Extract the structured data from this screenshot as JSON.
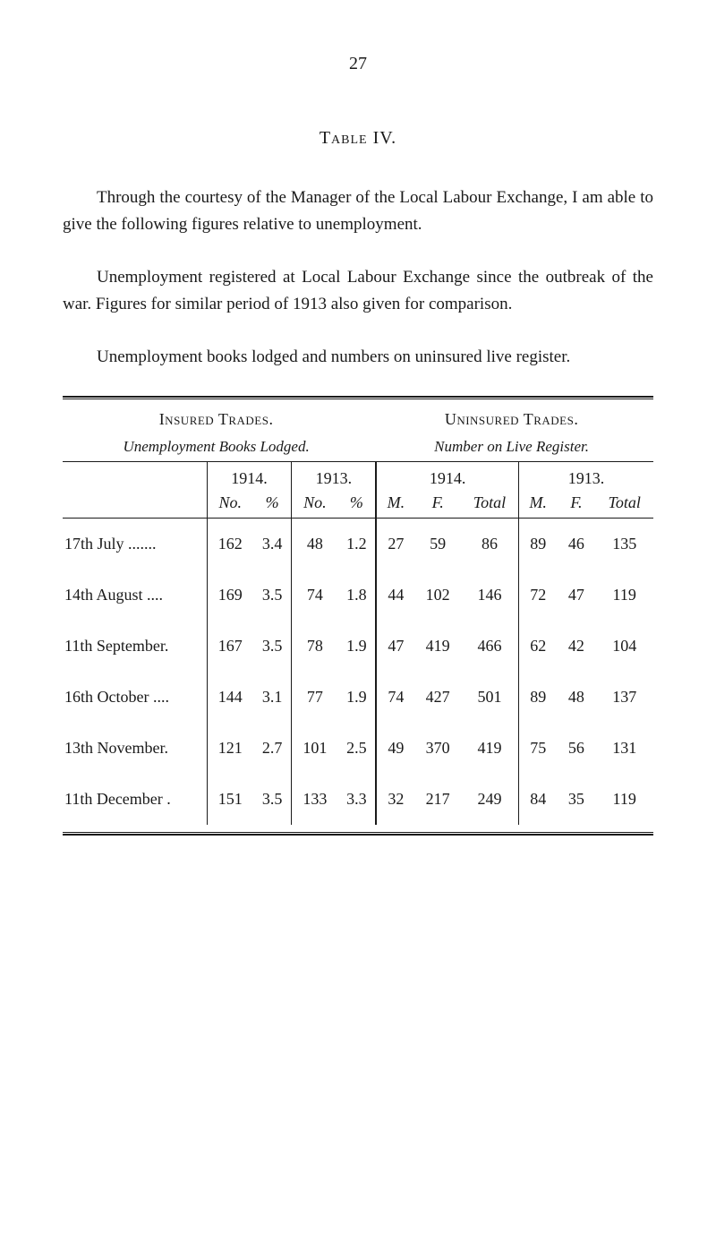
{
  "page_number": "27",
  "table_label": "Table IV.",
  "paragraphs": {
    "p1": "Through the courtesy of the Manager of the Local Labour Exchange, I am able to give the following figures relative to un­employment.",
    "p2": "Unemployment registered at Local Labour Exchange since the outbreak of the war. Figures for similar period of 1913 also given for comparison.",
    "p3": "Unemployment books lodged and numbers on uninsured live register."
  },
  "headings": {
    "left_main": "Insured Trades.",
    "left_sub": "Unemployment Books Lodged.",
    "right_main": "Uninsured Trades.",
    "right_sub": "Number on Live Register."
  },
  "year_headers": {
    "y1914": "1914.",
    "y1913": "1913.",
    "y1914b": "1914.",
    "y1913b": "1913."
  },
  "sub_headers": {
    "no": "No.",
    "pct": "%",
    "m": "M.",
    "f": "F.",
    "total": "Total"
  },
  "rows": [
    {
      "label": "17th July .......",
      "c": [
        "162",
        "3.4",
        "48",
        "1.2",
        "27",
        "59",
        "86",
        "89",
        "46",
        "135"
      ]
    },
    {
      "label": "14th August ....",
      "c": [
        "169",
        "3.5",
        "74",
        "1.8",
        "44",
        "102",
        "146",
        "72",
        "47",
        "119"
      ]
    },
    {
      "label": "11th September.",
      "c": [
        "167",
        "3.5",
        "78",
        "1.9",
        "47",
        "419",
        "466",
        "62",
        "42",
        "104"
      ]
    },
    {
      "label": "16th October ....",
      "c": [
        "144",
        "3.1",
        "77",
        "1.9",
        "74",
        "427",
        "501",
        "89",
        "48",
        "137"
      ]
    },
    {
      "label": "13th November.",
      "c": [
        "121",
        "2.7",
        "101",
        "2.5",
        "49",
        "370",
        "419",
        "75",
        "56",
        "131"
      ]
    },
    {
      "label": "11th December .",
      "c": [
        "151",
        "3.5",
        "133",
        "3.3",
        "32",
        "217",
        "249",
        "84",
        "35",
        "119"
      ]
    }
  ]
}
